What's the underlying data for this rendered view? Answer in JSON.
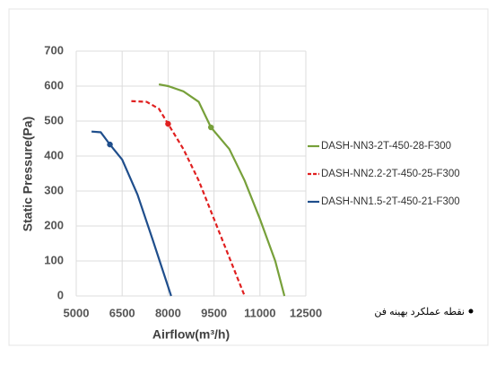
{
  "chart_data": {
    "type": "line",
    "x_label": "Airflow(m³/h)",
    "y_label": "Static Pressure(Pa)",
    "xlim": [
      5000,
      12500
    ],
    "xticks": [
      5000,
      6500,
      8000,
      9500,
      11000,
      12500
    ],
    "ylim": [
      0,
      700
    ],
    "yticks": [
      0,
      100,
      200,
      300,
      400,
      500,
      600,
      700
    ],
    "grid": true,
    "legend": "right",
    "series": [
      {
        "name": "DASH-NN3-2T-450-28-F300",
        "color": "#77a03a",
        "dash": false,
        "x": [
          7700,
          8000,
          8500,
          9000,
          9400,
          10000,
          10500,
          11000,
          11500,
          11800
        ],
        "values": [
          605,
          600,
          585,
          555,
          482,
          420,
          330,
          220,
          100,
          0
        ],
        "operating_point": {
          "x": 9400,
          "y": 482
        }
      },
      {
        "name": "DASH-NN2.2-2T-450-25-F300",
        "color": "#e02020",
        "dash": true,
        "x": [
          6800,
          7300,
          7700,
          8000,
          8500,
          9000,
          9500,
          10000,
          10500
        ],
        "values": [
          557,
          555,
          535,
          492,
          420,
          330,
          220,
          110,
          0
        ],
        "operating_point": {
          "x": 8000,
          "y": 492
        }
      },
      {
        "name": "DASH-NN1.5-2T-450-21-F300",
        "color": "#1f4e8c",
        "dash": false,
        "x": [
          5500,
          5800,
          6100,
          6500,
          7000,
          7500,
          8100
        ],
        "values": [
          470,
          468,
          433,
          390,
          290,
          160,
          0
        ],
        "operating_point": {
          "x": 6100,
          "y": 433
        }
      }
    ],
    "annotation": "نقطه عملکرد بهینه فن"
  }
}
